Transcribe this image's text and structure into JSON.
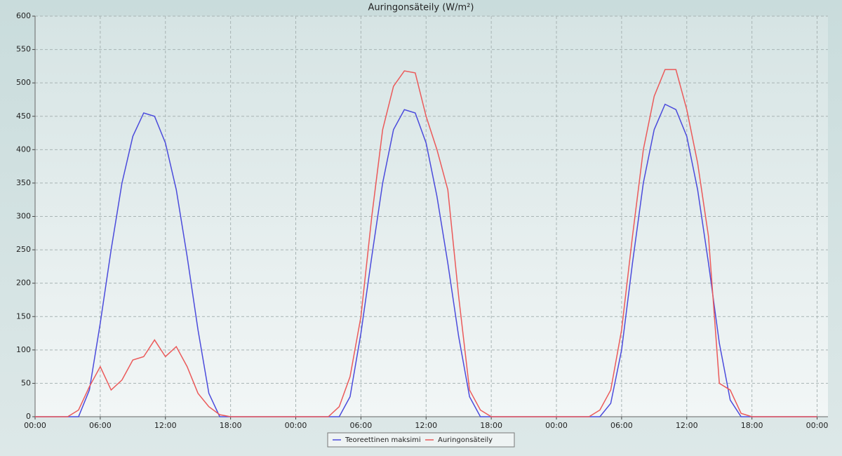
{
  "chart_data": {
    "type": "line",
    "title": "Auringonsäteily (W/m²)",
    "x": [
      0,
      1,
      2,
      3,
      4,
      5,
      6,
      7,
      8,
      9,
      10,
      11,
      12,
      13,
      14,
      15,
      16,
      17,
      18,
      19,
      20,
      21,
      22,
      23,
      24,
      25,
      26,
      27,
      28,
      29,
      30,
      31,
      32,
      33,
      34,
      35,
      36,
      37,
      38,
      39,
      40,
      41,
      42,
      43,
      44,
      45,
      46,
      47,
      48,
      49,
      50,
      51,
      52,
      53,
      54,
      55,
      56,
      57,
      58,
      59,
      60,
      61,
      62,
      63,
      64,
      65,
      66,
      67,
      68,
      69,
      70,
      71,
      72
    ],
    "series": [
      {
        "name": "Teoreettinen maksimi",
        "color": "#4b4bdc",
        "values": [
          0,
          0,
          0,
          0,
          0,
          40,
          140,
          250,
          350,
          420,
          455,
          450,
          410,
          340,
          240,
          130,
          35,
          0,
          0,
          0,
          0,
          0,
          0,
          0,
          0,
          0,
          0,
          0,
          0,
          30,
          125,
          240,
          350,
          430,
          460,
          455,
          410,
          330,
          230,
          120,
          30,
          0,
          0,
          0,
          0,
          0,
          0,
          0,
          0,
          0,
          0,
          0,
          0,
          20,
          100,
          230,
          350,
          430,
          468,
          460,
          420,
          340,
          230,
          110,
          25,
          0,
          0,
          0,
          0,
          0,
          0,
          0,
          0
        ]
      },
      {
        "name": "Auringonsäteily",
        "color": "#eb5a5a",
        "values": [
          0,
          0,
          0,
          0,
          10,
          45,
          75,
          40,
          55,
          85,
          90,
          115,
          90,
          105,
          75,
          35,
          15,
          3,
          0,
          0,
          0,
          0,
          0,
          0,
          0,
          0,
          0,
          0,
          15,
          60,
          150,
          300,
          430,
          495,
          518,
          515,
          450,
          400,
          340,
          180,
          40,
          10,
          0,
          0,
          0,
          0,
          0,
          0,
          0,
          0,
          0,
          0,
          10,
          40,
          130,
          270,
          400,
          480,
          520,
          520,
          460,
          380,
          270,
          50,
          40,
          5,
          0,
          0,
          0,
          0,
          0,
          0,
          0
        ]
      }
    ],
    "xlim": [
      0,
      73
    ],
    "xticks": [
      {
        "value": 0,
        "label": "00:00"
      },
      {
        "value": 6,
        "label": "06:00"
      },
      {
        "value": 12,
        "label": "12:00"
      },
      {
        "value": 18,
        "label": "18:00"
      },
      {
        "value": 24,
        "label": "00:00"
      },
      {
        "value": 30,
        "label": "06:00"
      },
      {
        "value": 36,
        "label": "12:00"
      },
      {
        "value": 42,
        "label": "18:00"
      },
      {
        "value": 48,
        "label": "00:00"
      },
      {
        "value": 54,
        "label": "06:00"
      },
      {
        "value": 60,
        "label": "12:00"
      },
      {
        "value": 66,
        "label": "18:00"
      },
      {
        "value": 72,
        "label": "00:00"
      }
    ],
    "ylim": [
      0,
      600
    ],
    "yticks": [
      0,
      50,
      100,
      150,
      200,
      250,
      300,
      350,
      400,
      450,
      500,
      550,
      600
    ],
    "grid": true,
    "legend": "bottom"
  }
}
